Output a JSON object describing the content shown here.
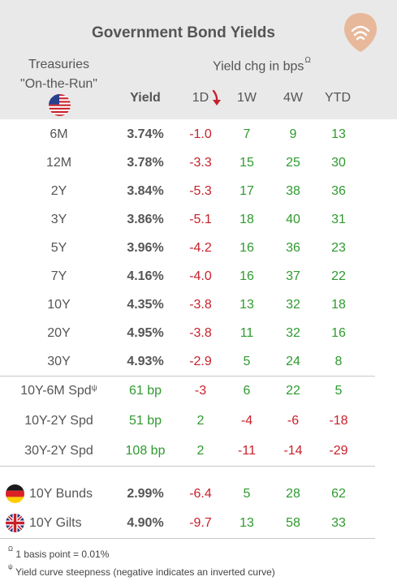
{
  "title": "Government Bond Yields",
  "logo_icon": "sound-waves-pin-icon",
  "header": {
    "treasuries_line1": "Treasuries",
    "treasuries_line2": "\"On-the-Run\"",
    "yield_chg_label": "Yield chg in bps",
    "yield_chg_sup": "Ω",
    "columns": {
      "yield": "Yield",
      "d1": "1D",
      "w1": "1W",
      "w4": "4W",
      "ytd": "YTD"
    },
    "sort_icon": "down-arrow-icon"
  },
  "treasuries": [
    {
      "name": "6M",
      "yield": "3.74%",
      "d1": "-1.0",
      "w1": "7",
      "w4": "9",
      "ytd": "13"
    },
    {
      "name": "12M",
      "yield": "3.78%",
      "d1": "-3.3",
      "w1": "15",
      "w4": "25",
      "ytd": "30"
    },
    {
      "name": "2Y",
      "yield": "3.84%",
      "d1": "-5.3",
      "w1": "17",
      "w4": "38",
      "ytd": "36"
    },
    {
      "name": "3Y",
      "yield": "3.86%",
      "d1": "-5.1",
      "w1": "18",
      "w4": "40",
      "ytd": "31"
    },
    {
      "name": "5Y",
      "yield": "3.96%",
      "d1": "-4.2",
      "w1": "16",
      "w4": "36",
      "ytd": "23"
    },
    {
      "name": "7Y",
      "yield": "4.16%",
      "d1": "-4.0",
      "w1": "16",
      "w4": "37",
      "ytd": "22"
    },
    {
      "name": "10Y",
      "yield": "4.35%",
      "d1": "-3.8",
      "w1": "13",
      "w4": "32",
      "ytd": "18"
    },
    {
      "name": "20Y",
      "yield": "4.95%",
      "d1": "-3.8",
      "w1": "11",
      "w4": "32",
      "ytd": "16"
    },
    {
      "name": "30Y",
      "yield": "4.93%",
      "d1": "-2.9",
      "w1": "5",
      "w4": "24",
      "ytd": "8"
    }
  ],
  "spreads": [
    {
      "name": "10Y-6M Spd",
      "sup": "ψ",
      "yield": "61 bp",
      "d1": "-3",
      "w1": "6",
      "w4": "22",
      "ytd": "5"
    },
    {
      "name": "10Y-2Y Spd",
      "sup": "",
      "yield": "51 bp",
      "d1": "2",
      "w1": "-4",
      "w4": "-6",
      "ytd": "-18"
    },
    {
      "name": "30Y-2Y Spd",
      "sup": "",
      "yield": "108 bp",
      "d1": "2",
      "w1": "-11",
      "w4": "-14",
      "ytd": "-29"
    }
  ],
  "foreign": [
    {
      "name": "10Y Bunds",
      "flag": "germany-flag-icon",
      "yield": "2.99%",
      "d1": "-6.4",
      "w1": "5",
      "w4": "28",
      "ytd": "62"
    },
    {
      "name": "10Y Gilts",
      "flag": "uk-flag-icon",
      "yield": "4.90%",
      "d1": "-9.7",
      "w1": "13",
      "w4": "58",
      "ytd": "33"
    }
  ],
  "footnotes": {
    "note1_sym": "Ω",
    "note1": " 1 basis point = 0.01%",
    "note2_sym": "ψ",
    "note2": " Yield curve steepness (negative indicates an inverted curve)"
  },
  "colors": {
    "positive": "#2e9a2e",
    "negative": "#c8202a",
    "header_bg": "#e9e9e9"
  }
}
